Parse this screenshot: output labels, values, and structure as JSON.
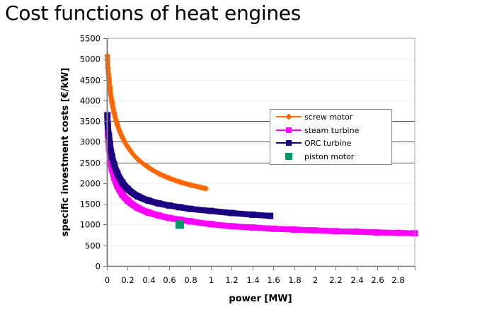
{
  "title": "Cost functions of heat engines",
  "chart_data": {
    "type": "line",
    "title": "Cost functions of heat engines",
    "xlabel": "power [MW]",
    "ylabel": "specific investment costs  [€/kW]",
    "xlim": [
      0,
      2.96
    ],
    "ylim": [
      0,
      5500
    ],
    "x_ticks": [
      "0",
      "0.2",
      "0.4",
      "0.6",
      "0.8",
      "1",
      "1.2",
      "1.4",
      "1.6",
      "1.8",
      "2",
      "2.2",
      "2.4",
      "2.6",
      "2.8"
    ],
    "y_ticks": [
      "0",
      "500",
      "1000",
      "1500",
      "2000",
      "2500",
      "3000",
      "3500",
      "4000",
      "4500",
      "5000",
      "5500"
    ],
    "grid": "horizontal",
    "legend_position": "right-center",
    "series": [
      {
        "name": "screw motor",
        "color": "#ff6600",
        "marker": "diamond",
        "points": [
          [
            0.005,
            5080
          ],
          [
            0.01,
            4780
          ],
          [
            0.02,
            4530
          ],
          [
            0.03,
            4300
          ],
          [
            0.05,
            3940
          ],
          [
            0.07,
            3700
          ],
          [
            0.1,
            3420
          ],
          [
            0.15,
            3100
          ],
          [
            0.2,
            2880
          ],
          [
            0.3,
            2570
          ],
          [
            0.4,
            2380
          ],
          [
            0.5,
            2230
          ],
          [
            0.6,
            2120
          ],
          [
            0.7,
            2030
          ],
          [
            0.8,
            1960
          ],
          [
            0.9,
            1900
          ],
          [
            0.95,
            1870
          ]
        ]
      },
      {
        "name": "steam turbine",
        "color": "#ff00ff",
        "marker": "square",
        "points": [
          [
            0.005,
            3480
          ],
          [
            0.01,
            3200
          ],
          [
            0.02,
            2850
          ],
          [
            0.03,
            2600
          ],
          [
            0.05,
            2330
          ],
          [
            0.07,
            2140
          ],
          [
            0.1,
            1940
          ],
          [
            0.15,
            1720
          ],
          [
            0.2,
            1580
          ],
          [
            0.3,
            1400
          ],
          [
            0.4,
            1290
          ],
          [
            0.5,
            1220
          ],
          [
            0.6,
            1160
          ],
          [
            0.7,
            1120
          ],
          [
            0.8,
            1080
          ],
          [
            1.0,
            1010
          ],
          [
            1.2,
            960
          ],
          [
            1.4,
            930
          ],
          [
            1.6,
            900
          ],
          [
            1.8,
            880
          ],
          [
            2.0,
            860
          ],
          [
            2.2,
            840
          ],
          [
            2.4,
            830
          ],
          [
            2.6,
            810
          ],
          [
            2.8,
            800
          ],
          [
            2.96,
            790
          ]
        ]
      },
      {
        "name": "ORC turbine",
        "color": "#1a0080",
        "marker": "square",
        "points": [
          [
            0.005,
            3640
          ],
          [
            0.01,
            3380
          ],
          [
            0.02,
            3150
          ],
          [
            0.03,
            2950
          ],
          [
            0.05,
            2640
          ],
          [
            0.07,
            2450
          ],
          [
            0.1,
            2240
          ],
          [
            0.15,
            2010
          ],
          [
            0.2,
            1860
          ],
          [
            0.3,
            1680
          ],
          [
            0.4,
            1580
          ],
          [
            0.5,
            1510
          ],
          [
            0.6,
            1460
          ],
          [
            0.7,
            1420
          ],
          [
            0.8,
            1380
          ],
          [
            1.0,
            1330
          ],
          [
            1.2,
            1280
          ],
          [
            1.4,
            1240
          ],
          [
            1.57,
            1210
          ]
        ]
      },
      {
        "name": "piston motor",
        "color": "#009966",
        "marker": "square",
        "points": [
          [
            0.7,
            1000
          ]
        ]
      }
    ]
  }
}
